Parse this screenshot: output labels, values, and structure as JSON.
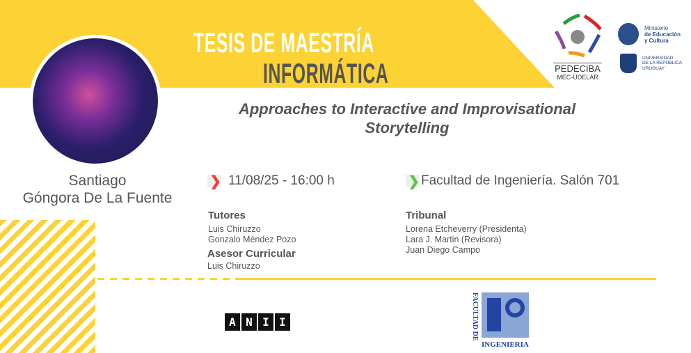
{
  "header": {
    "title_line1": "TESIS DE  MAESTRÍA",
    "title_line2": "INFORMÁTICA"
  },
  "colors": {
    "yellow": "#fcd234",
    "text": "#555555",
    "date_chevron": "#e8413c",
    "place_chevron": "#5cc642"
  },
  "presenter": {
    "first_name": "Santiago",
    "last_name": "Góngora De La Fuente"
  },
  "thesis_title": "Approaches to Interactive and Improvisational Storytelling",
  "event": {
    "datetime": "11/08/25 - 16:00 h",
    "location": "Facultad de Ingeniería. Salón 701"
  },
  "tutors": {
    "heading": "Tutores",
    "names": [
      "Luis Chiruzzo",
      "Gonzalo Méndez Pozo"
    ]
  },
  "advisor": {
    "heading": "Asesor Curricular",
    "names": [
      "Luis Chiruzzo"
    ]
  },
  "tribunal": {
    "heading": "Tribunal",
    "names": [
      "Lorena Etcheverry (Presidenta)",
      "Lara J. Martin (Revisora)",
      "Juan Diego Campo"
    ]
  },
  "logos": {
    "pedeciba": {
      "line1": "PEDECIBA",
      "line2": "MEC-UDELAR"
    },
    "mec": {
      "line1": "Ministerio",
      "line2": "de Educación",
      "line3": "y Cultura"
    },
    "udelar": {
      "line1": "UNIVERSIDAD",
      "line2": "DE LA REPÚBLICA",
      "line3": "URUGUAY"
    },
    "anii": [
      "A",
      "N",
      "I",
      "I"
    ],
    "fing": {
      "vertical": "FACULTAD DE",
      "horizontal": "INGENIERIA"
    }
  }
}
